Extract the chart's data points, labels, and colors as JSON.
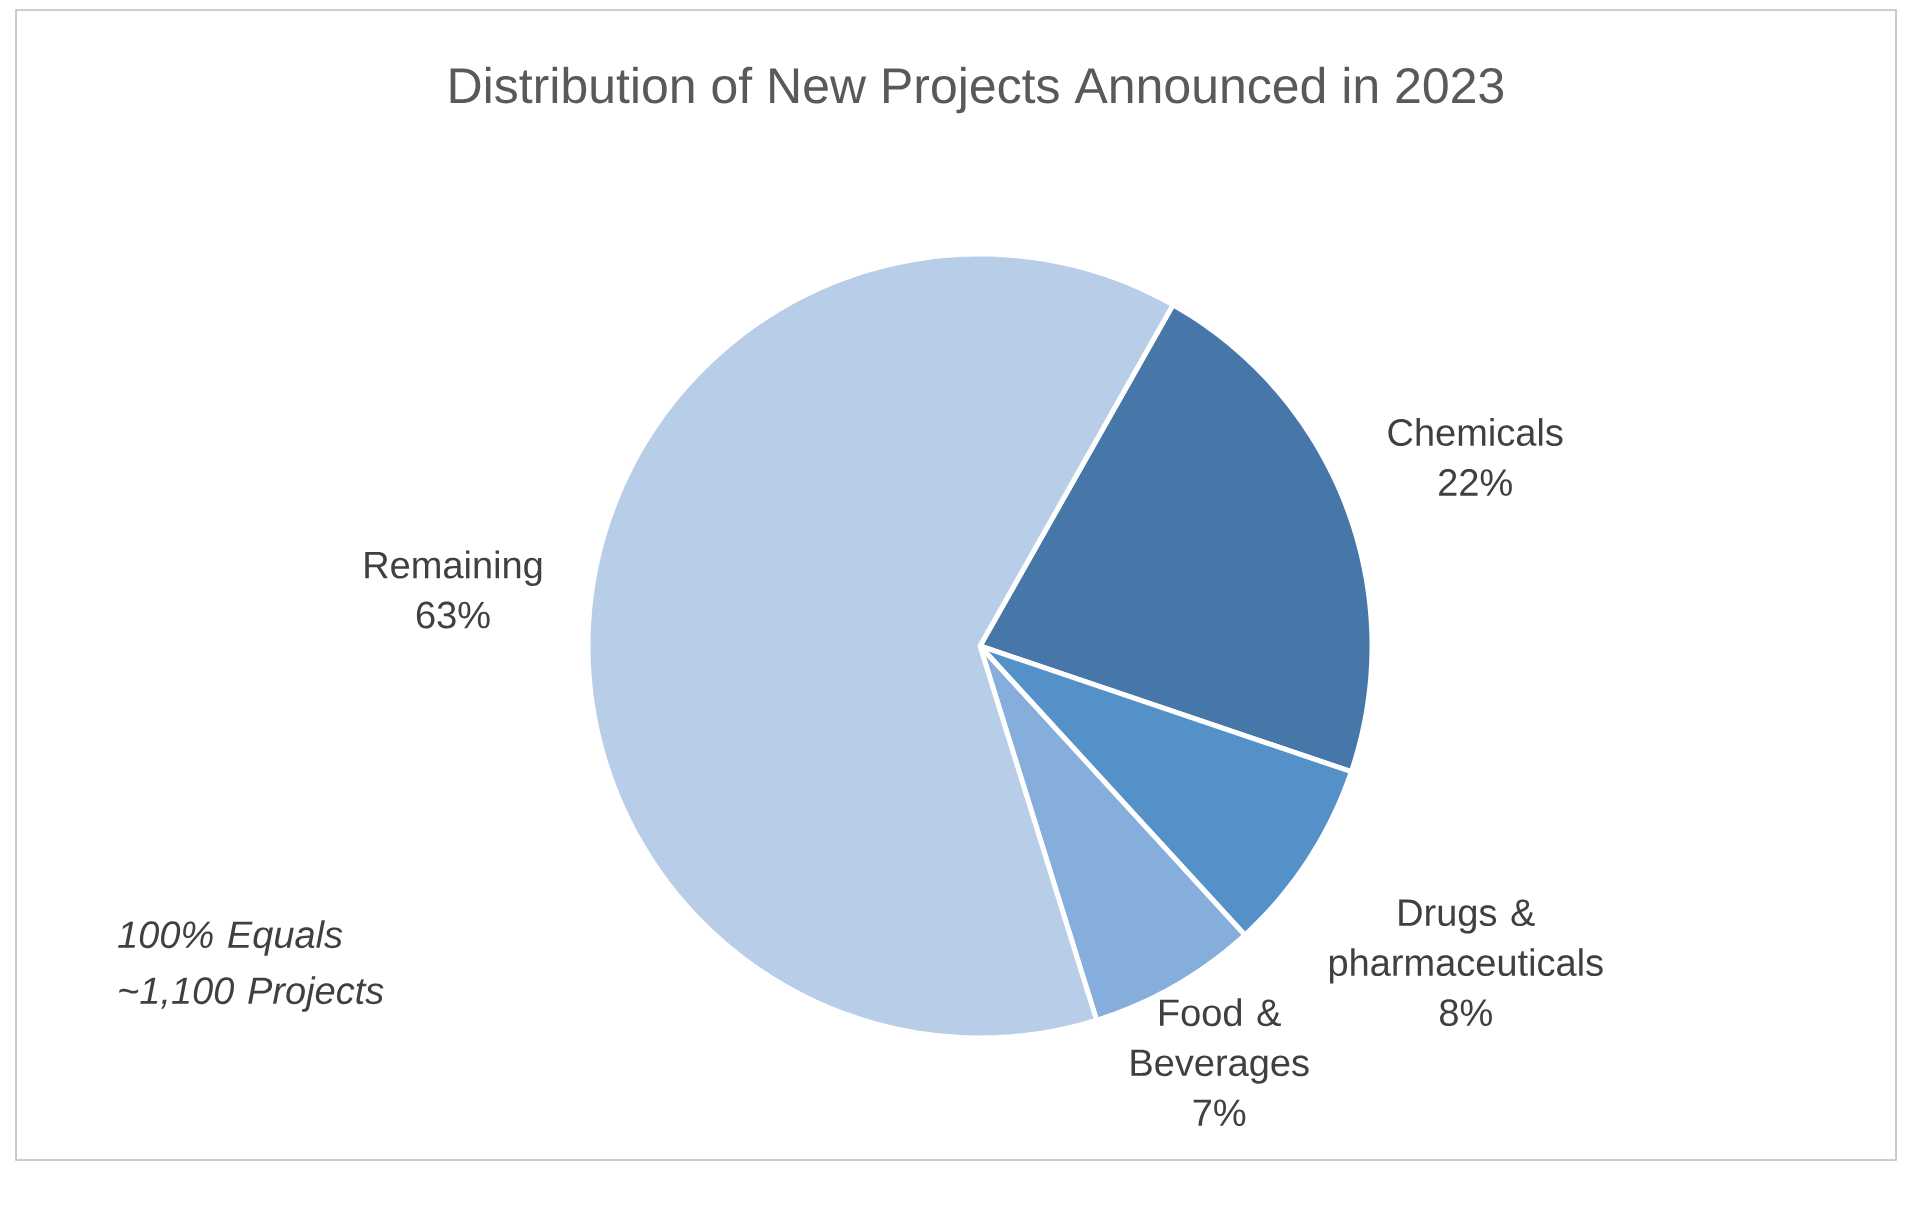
{
  "chart_data": {
    "type": "pie",
    "title": "Distribution of New Projects Announced in 2023",
    "categories": [
      "Chemicals",
      "Drugs & pharmaceuticals",
      "Food & Beverages",
      "Remaining"
    ],
    "values": [
      22,
      8,
      7,
      63
    ],
    "colors": [
      "#4677a8",
      "#5591c9",
      "#86aedc",
      "#b8cde8"
    ],
    "value_labels": [
      "22%",
      "8%",
      "7%",
      "63%"
    ],
    "annotations": [
      "*100% Equals ~1,100 Projects*"
    ]
  }
}
